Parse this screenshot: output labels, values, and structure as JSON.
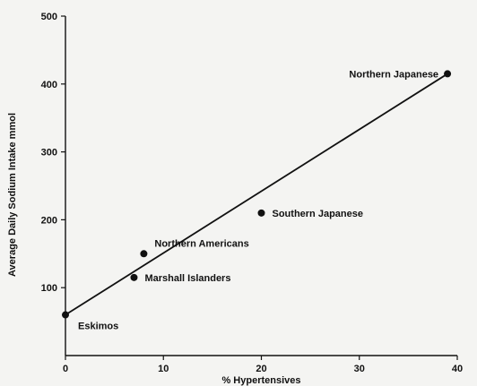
{
  "chart_data": {
    "type": "scatter",
    "title": "",
    "xlabel": "% Hypertensives",
    "ylabel": "Average Daily Sodium Intake mmol",
    "xlim": [
      0,
      40
    ],
    "ylim": [
      0,
      500
    ],
    "xticks": [
      "0",
      "10",
      "20",
      "30",
      "40"
    ],
    "yticks": [
      "100",
      "200",
      "300",
      "400",
      "500"
    ],
    "grid": false,
    "points": [
      {
        "label": "Eskimos",
        "x": 0,
        "y": 60
      },
      {
        "label": "Marshall Islanders",
        "x": 7,
        "y": 115
      },
      {
        "label": "Northern Americans",
        "x": 8,
        "y": 150
      },
      {
        "label": "Southern Japanese",
        "x": 20,
        "y": 210
      },
      {
        "label": "Northern Japanese",
        "x": 39,
        "y": 415
      }
    ],
    "trendline": {
      "x": [
        0,
        39
      ],
      "y": [
        60,
        415
      ]
    },
    "colors": {
      "marks": "#111111"
    }
  }
}
